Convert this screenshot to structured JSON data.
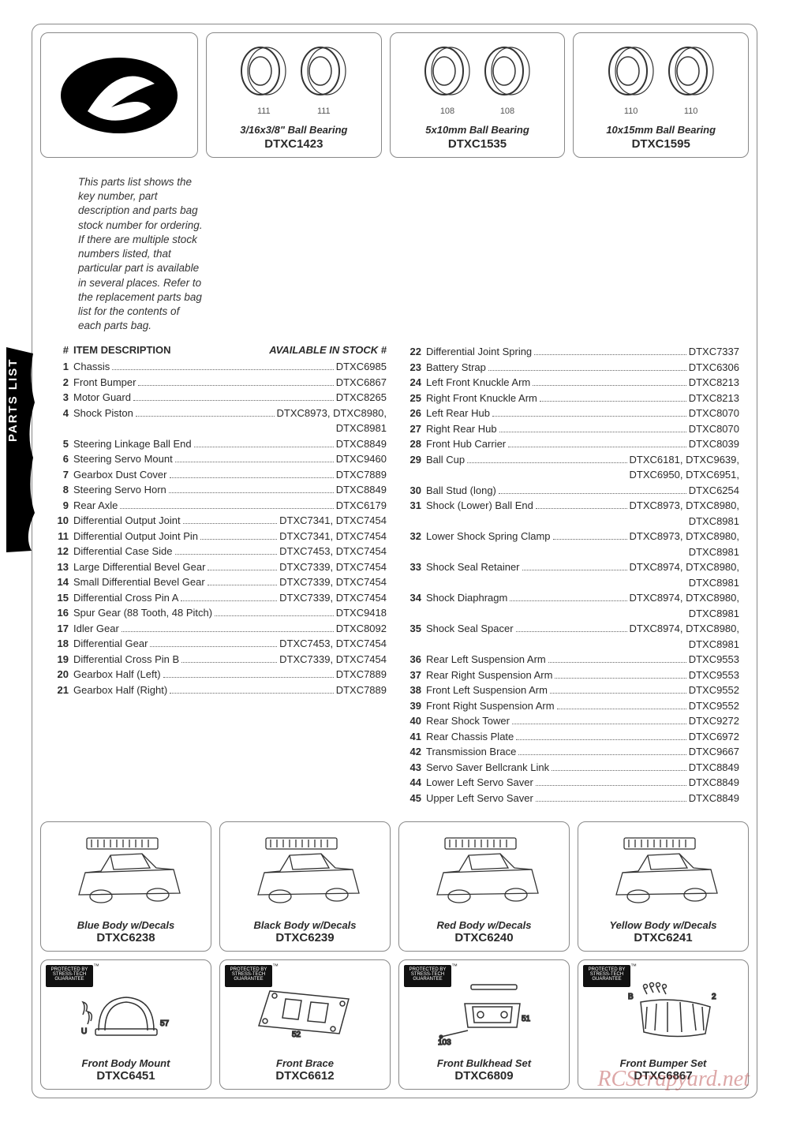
{
  "intro": "This parts list shows the key number, part description and parts bag stock number for ordering. If there are multiple stock numbers listed, that particular part is available in several places. Refer to the replacement parts bag list for the contents of each parts bag.",
  "sideTab": "PARTS LIST",
  "headers": {
    "num": "#",
    "desc": "ITEM DESCRIPTION",
    "stock": "AVAILABLE IN STOCK #"
  },
  "bearings": [
    {
      "label": "3/16x3/8\" Ball Bearing",
      "code": "DTXC1423",
      "nums": [
        "111",
        "111"
      ]
    },
    {
      "label": "5x10mm Ball Bearing",
      "code": "DTXC1535",
      "nums": [
        "108",
        "108"
      ]
    },
    {
      "label": "10x15mm Ball Bearing",
      "code": "DTXC1595",
      "nums": [
        "110",
        "110"
      ]
    }
  ],
  "leftParts": [
    {
      "n": "1",
      "d": "Chassis",
      "s": "DTXC6985"
    },
    {
      "n": "2",
      "d": "Front Bumper",
      "s": "DTXC6867"
    },
    {
      "n": "3",
      "d": "Motor Guard",
      "s": "DTXC8265"
    },
    {
      "n": "4",
      "d": "Shock Piston",
      "s": "DTXC8973, DTXC8980,",
      "cont": "DTXC8981"
    },
    {
      "n": "5",
      "d": "Steering Linkage Ball End",
      "s": "DTXC8849"
    },
    {
      "n": "6",
      "d": "Steering Servo Mount",
      "s": "DTXC9460"
    },
    {
      "n": "7",
      "d": "Gearbox Dust Cover",
      "s": "DTXC7889"
    },
    {
      "n": "8",
      "d": "Steering Servo Horn",
      "s": "DTXC8849"
    },
    {
      "n": "9",
      "d": "Rear Axle",
      "s": "DTXC6179"
    },
    {
      "n": "10",
      "d": "Differential Output Joint",
      "s": "DTXC7341, DTXC7454"
    },
    {
      "n": "11",
      "d": "Differential Output Joint Pin",
      "s": "DTXC7341, DTXC7454"
    },
    {
      "n": "12",
      "d": "Differential Case Side",
      "s": "DTXC7453, DTXC7454"
    },
    {
      "n": "13",
      "d": "Large Differential Bevel Gear",
      "s": "DTXC7339, DTXC7454"
    },
    {
      "n": "14",
      "d": "Small Differential Bevel Gear",
      "s": "DTXC7339, DTXC7454"
    },
    {
      "n": "15",
      "d": "Differential Cross Pin A",
      "s": "DTXC7339, DTXC7454"
    },
    {
      "n": "16",
      "d": "Spur Gear (88 Tooth, 48 Pitch)",
      "s": "DTXC9418"
    },
    {
      "n": "17",
      "d": "Idler Gear",
      "s": "DTXC8092"
    },
    {
      "n": "18",
      "d": "Differential Gear",
      "s": "DTXC7453, DTXC7454"
    },
    {
      "n": "19",
      "d": "Differential Cross Pin B",
      "s": "DTXC7339, DTXC7454"
    },
    {
      "n": "20",
      "d": "Gearbox Half (Left)",
      "s": "DTXC7889"
    },
    {
      "n": "21",
      "d": "Gearbox Half (Right)",
      "s": "DTXC7889"
    }
  ],
  "rightParts": [
    {
      "n": "22",
      "d": "Differential Joint Spring",
      "s": "DTXC7337"
    },
    {
      "n": "23",
      "d": "Battery Strap",
      "s": "DTXC6306"
    },
    {
      "n": "24",
      "d": "Left Front Knuckle Arm",
      "s": "DTXC8213"
    },
    {
      "n": "25",
      "d": "Right Front Knuckle Arm",
      "s": "DTXC8213"
    },
    {
      "n": "26",
      "d": "Left Rear Hub",
      "s": "DTXC8070"
    },
    {
      "n": "27",
      "d": "Right Rear Hub",
      "s": "DTXC8070"
    },
    {
      "n": "28",
      "d": "Front Hub Carrier",
      "s": "DTXC8039"
    },
    {
      "n": "29",
      "d": "Ball Cup",
      "s": "DTXC6181, DTXC9639,",
      "cont": "DTXC6950, DTXC6951,"
    },
    {
      "n": "30",
      "d": "Ball Stud (long)",
      "s": "DTXC6254"
    },
    {
      "n": "31",
      "d": "Shock (Lower) Ball End",
      "s": "DTXC8973, DTXC8980,",
      "cont": "DTXC8981"
    },
    {
      "n": "32",
      "d": "Lower Shock Spring Clamp",
      "s": "DTXC8973, DTXC8980,",
      "cont": "DTXC8981"
    },
    {
      "n": "33",
      "d": "Shock Seal Retainer",
      "s": "DTXC8974, DTXC8980,",
      "cont": "DTXC8981"
    },
    {
      "n": "34",
      "d": "Shock Diaphragm",
      "s": "DTXC8974, DTXC8980,",
      "cont": "DTXC8981"
    },
    {
      "n": "35",
      "d": "Shock Seal Spacer",
      "s": "DTXC8974, DTXC8980,",
      "cont": "DTXC8981"
    },
    {
      "n": "36",
      "d": "Rear Left Suspension Arm",
      "s": "DTXC9553"
    },
    {
      "n": "37",
      "d": "Rear Right Suspension Arm",
      "s": "DTXC9553"
    },
    {
      "n": "38",
      "d": "Front Left Suspension Arm",
      "s": "DTXC9552"
    },
    {
      "n": "39",
      "d": "Front Right Suspension Arm",
      "s": "DTXC9552"
    },
    {
      "n": "40",
      "d": "Rear Shock Tower",
      "s": "DTXC9272"
    },
    {
      "n": "41",
      "d": "Rear Chassis Plate",
      "s": "DTXC6972"
    },
    {
      "n": "42",
      "d": "Transmission Brace",
      "s": "DTXC9667"
    },
    {
      "n": "43",
      "d": "Servo Saver Bellcrank Link",
      "s": "DTXC8849"
    },
    {
      "n": "44",
      "d": "Lower Left Servo Saver",
      "s": "DTXC8849"
    },
    {
      "n": "45",
      "d": "Upper Left Servo Saver",
      "s": "DTXC8849"
    }
  ],
  "bodyRow": [
    {
      "label": "Blue Body w/Decals",
      "code": "DTXC6238"
    },
    {
      "label": "Black Body w/Decals",
      "code": "DTXC6239"
    },
    {
      "label": "Red Body w/Decals",
      "code": "DTXC6240"
    },
    {
      "label": "Yellow Body w/Decals",
      "code": "DTXC6241"
    }
  ],
  "bottomRow": [
    {
      "label": "Front Body Mount",
      "code": "DTXC6451",
      "badge": true,
      "nums": [
        "U",
        "57"
      ]
    },
    {
      "label": "Front Brace",
      "code": "DTXC6612",
      "badge": true,
      "nums": [
        "52"
      ]
    },
    {
      "label": "Front Bulkhead Set",
      "code": "DTXC6809",
      "badge": true,
      "nums": [
        "103",
        "51"
      ]
    },
    {
      "label": "Front Bumper Set",
      "code": "DTXC6867",
      "badge": true,
      "nums": [
        "B",
        "2"
      ]
    }
  ],
  "badgeText": "PROTECTED BY STRESS-TECH GUARANTEE",
  "watermark": "RCScrapyard.net",
  "colors": {
    "border": "#888888",
    "text": "#2a2a2a",
    "badge_bg": "#111111",
    "watermark": "rgba(180,60,60,0.45)"
  }
}
